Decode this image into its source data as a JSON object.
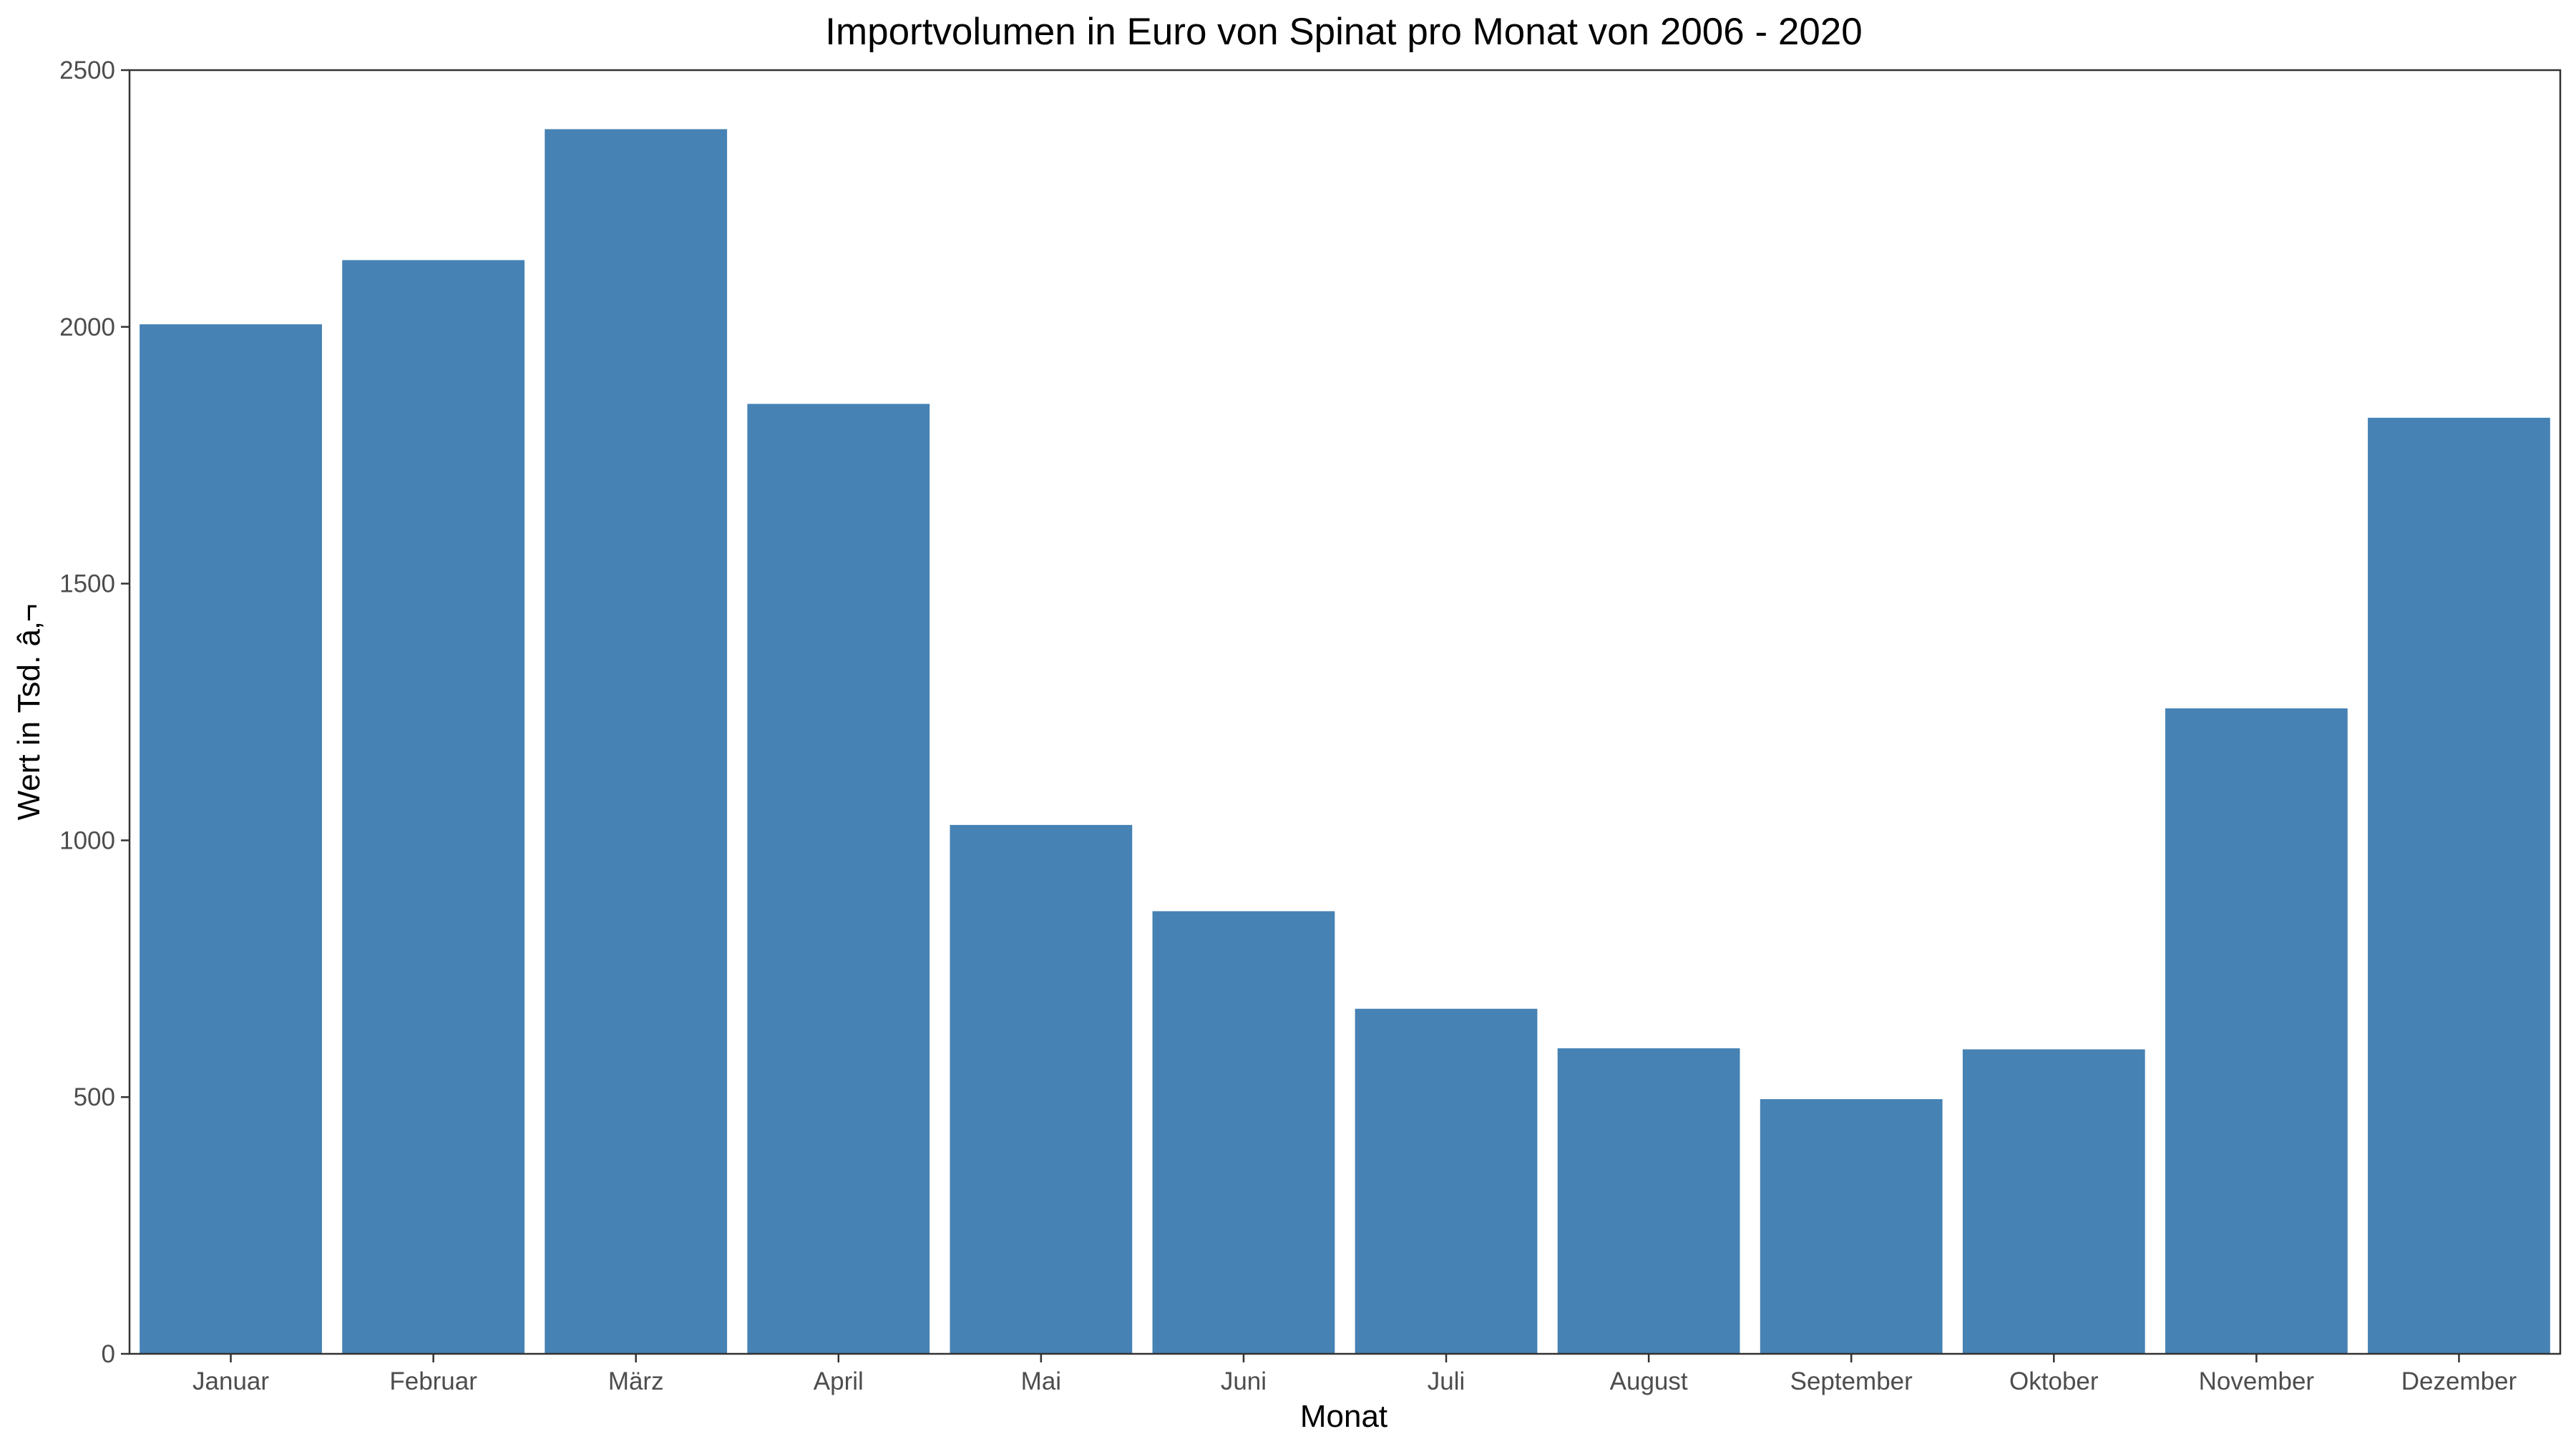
{
  "chart_data": {
    "type": "bar",
    "title": "Importvolumen in Euro von Spinat pro Monat von 2006 - 2020",
    "xlabel": "Monat",
    "ylabel": "Wert in Tsd. â‚¬",
    "categories": [
      "Januar",
      "Februar",
      "März",
      "April",
      "Mai",
      "Juni",
      "Juli",
      "August",
      "September",
      "Oktober",
      "November",
      "Dezember"
    ],
    "values": [
      2005,
      2130,
      2385,
      1850,
      1030,
      862,
      672,
      595,
      496,
      593,
      1257,
      1823
    ],
    "ylim": [
      0,
      2500
    ],
    "yticks": [
      "0",
      "500",
      "1000",
      "1500",
      "2000",
      "2500"
    ],
    "bar_color": "#4682B4",
    "grid": false,
    "legend": "none"
  }
}
